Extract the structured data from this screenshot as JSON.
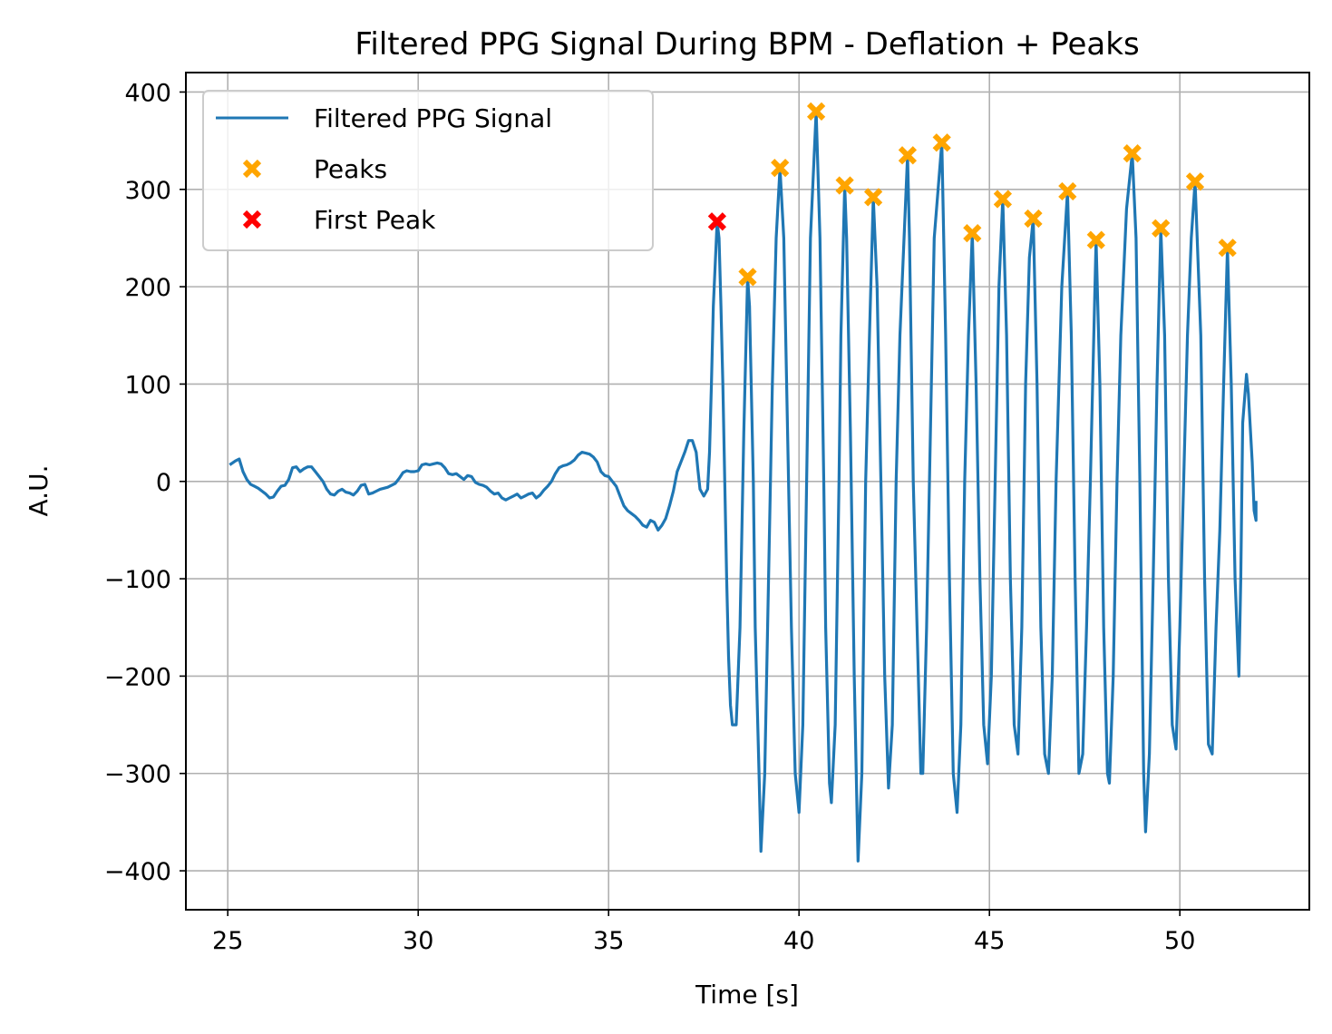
{
  "chart_data": {
    "type": "line",
    "title": "Filtered PPG Signal During BPM - Deflation + Peaks",
    "xlabel": "Time [s]",
    "ylabel": "A.U.",
    "xlim": [
      23.9,
      53.4
    ],
    "ylim": [
      -440,
      420
    ],
    "xticks": [
      25,
      30,
      35,
      40,
      45,
      50
    ],
    "xtick_labels": [
      "25",
      "30",
      "35",
      "40",
      "45",
      "50"
    ],
    "yticks": [
      400,
      300,
      200,
      100,
      0,
      -100,
      -200,
      -300,
      -400
    ],
    "ytick_labels": [
      "400",
      "300",
      "200",
      "100",
      "0",
      "−100",
      "−200",
      "−300",
      "−400"
    ],
    "grid": true,
    "legend_position": "top-left",
    "colors": {
      "signal": "#1f77b4",
      "peaks": "#ffa500",
      "first_peak": "#ff0000"
    },
    "series": [
      {
        "name": "Filtered PPG Signal",
        "style": "line",
        "points": [
          [
            25.05,
            17
          ],
          [
            25.2,
            21
          ],
          [
            25.3,
            23
          ],
          [
            25.4,
            10
          ],
          [
            25.5,
            2
          ],
          [
            25.6,
            -3
          ],
          [
            25.7,
            -5
          ],
          [
            25.8,
            -7
          ],
          [
            25.9,
            -10
          ],
          [
            26.0,
            -13
          ],
          [
            26.1,
            -17
          ],
          [
            26.2,
            -16
          ],
          [
            26.3,
            -10
          ],
          [
            26.4,
            -5
          ],
          [
            26.5,
            -4
          ],
          [
            26.6,
            2
          ],
          [
            26.7,
            14
          ],
          [
            26.8,
            15
          ],
          [
            26.9,
            10
          ],
          [
            27.0,
            13
          ],
          [
            27.1,
            15
          ],
          [
            27.2,
            15
          ],
          [
            27.3,
            10
          ],
          [
            27.4,
            5
          ],
          [
            27.5,
            0
          ],
          [
            27.6,
            -8
          ],
          [
            27.7,
            -13
          ],
          [
            27.8,
            -14
          ],
          [
            27.9,
            -10
          ],
          [
            28.0,
            -8
          ],
          [
            28.1,
            -11
          ],
          [
            28.2,
            -12
          ],
          [
            28.3,
            -14
          ],
          [
            28.4,
            -10
          ],
          [
            28.5,
            -4
          ],
          [
            28.6,
            -3
          ],
          [
            28.7,
            -13
          ],
          [
            28.8,
            -12
          ],
          [
            28.9,
            -10
          ],
          [
            29.0,
            -8
          ],
          [
            29.2,
            -6
          ],
          [
            29.4,
            -2
          ],
          [
            29.5,
            3
          ],
          [
            29.6,
            9
          ],
          [
            29.7,
            11
          ],
          [
            29.8,
            10
          ],
          [
            29.9,
            10
          ],
          [
            30.0,
            11
          ],
          [
            30.1,
            17
          ],
          [
            30.2,
            18
          ],
          [
            30.3,
            17
          ],
          [
            30.4,
            18
          ],
          [
            30.5,
            19
          ],
          [
            30.6,
            18
          ],
          [
            30.7,
            14
          ],
          [
            30.8,
            8
          ],
          [
            30.9,
            7
          ],
          [
            31.0,
            8
          ],
          [
            31.1,
            5
          ],
          [
            31.2,
            2
          ],
          [
            31.3,
            6
          ],
          [
            31.4,
            5
          ],
          [
            31.5,
            -1
          ],
          [
            31.6,
            -3
          ],
          [
            31.7,
            -4
          ],
          [
            31.8,
            -6
          ],
          [
            31.9,
            -10
          ],
          [
            32.0,
            -13
          ],
          [
            32.1,
            -12
          ],
          [
            32.2,
            -17
          ],
          [
            32.3,
            -19
          ],
          [
            32.4,
            -17
          ],
          [
            32.5,
            -15
          ],
          [
            32.6,
            -13
          ],
          [
            32.7,
            -17
          ],
          [
            32.8,
            -15
          ],
          [
            32.9,
            -13
          ],
          [
            33.0,
            -12
          ],
          [
            33.1,
            -17
          ],
          [
            33.2,
            -14
          ],
          [
            33.3,
            -9
          ],
          [
            33.4,
            -5
          ],
          [
            33.5,
            0
          ],
          [
            33.6,
            8
          ],
          [
            33.7,
            14
          ],
          [
            33.8,
            16
          ],
          [
            33.9,
            17
          ],
          [
            34.0,
            19
          ],
          [
            34.1,
            22
          ],
          [
            34.2,
            27
          ],
          [
            34.3,
            30
          ],
          [
            34.4,
            29
          ],
          [
            34.5,
            28
          ],
          [
            34.6,
            25
          ],
          [
            34.7,
            20
          ],
          [
            34.8,
            10
          ],
          [
            34.9,
            6
          ],
          [
            35.0,
            5
          ],
          [
            35.1,
            0
          ],
          [
            35.2,
            -5
          ],
          [
            35.3,
            -15
          ],
          [
            35.4,
            -25
          ],
          [
            35.5,
            -30
          ],
          [
            35.6,
            -33
          ],
          [
            35.7,
            -36
          ],
          [
            35.8,
            -40
          ],
          [
            35.9,
            -45
          ],
          [
            36.0,
            -47
          ],
          [
            36.1,
            -40
          ],
          [
            36.2,
            -42
          ],
          [
            36.3,
            -50
          ],
          [
            36.4,
            -45
          ],
          [
            36.5,
            -38
          ],
          [
            36.6,
            -25
          ],
          [
            36.7,
            -10
          ],
          [
            36.8,
            10
          ],
          [
            36.9,
            20
          ],
          [
            37.0,
            30
          ],
          [
            37.1,
            42
          ],
          [
            37.2,
            42
          ],
          [
            37.3,
            30
          ],
          [
            37.35,
            10
          ],
          [
            37.4,
            -8
          ],
          [
            37.5,
            -15
          ],
          [
            37.6,
            -8
          ],
          [
            37.65,
            30
          ],
          [
            37.7,
            100
          ],
          [
            37.75,
            180
          ],
          [
            37.85,
            267
          ],
          [
            37.9,
            250
          ],
          [
            37.95,
            180
          ],
          [
            38.0,
            100
          ],
          [
            38.05,
            0
          ],
          [
            38.1,
            -100
          ],
          [
            38.15,
            -180
          ],
          [
            38.2,
            -230
          ],
          [
            38.25,
            -250
          ],
          [
            38.35,
            -250
          ],
          [
            38.45,
            -150
          ],
          [
            38.55,
            50
          ],
          [
            38.65,
            210
          ],
          [
            38.7,
            180
          ],
          [
            38.8,
            0
          ],
          [
            38.85,
            -150
          ],
          [
            38.95,
            -300
          ],
          [
            39.0,
            -380
          ],
          [
            39.1,
            -300
          ],
          [
            39.2,
            -100
          ],
          [
            39.3,
            100
          ],
          [
            39.4,
            250
          ],
          [
            39.5,
            322
          ],
          [
            39.6,
            250
          ],
          [
            39.7,
            50
          ],
          [
            39.8,
            -150
          ],
          [
            39.9,
            -300
          ],
          [
            40.0,
            -340
          ],
          [
            40.1,
            -250
          ],
          [
            40.2,
            0
          ],
          [
            40.3,
            250
          ],
          [
            40.45,
            380
          ],
          [
            40.55,
            250
          ],
          [
            40.65,
            0
          ],
          [
            40.7,
            -150
          ],
          [
            40.8,
            -310
          ],
          [
            40.85,
            -330
          ],
          [
            40.95,
            -250
          ],
          [
            41.05,
            0
          ],
          [
            41.1,
            150
          ],
          [
            41.2,
            304
          ],
          [
            41.25,
            250
          ],
          [
            41.35,
            50
          ],
          [
            41.45,
            -200
          ],
          [
            41.55,
            -390
          ],
          [
            41.65,
            -300
          ],
          [
            41.75,
            0
          ],
          [
            41.85,
            150
          ],
          [
            41.95,
            292
          ],
          [
            42.05,
            200
          ],
          [
            42.15,
            0
          ],
          [
            42.25,
            -200
          ],
          [
            42.35,
            -315
          ],
          [
            42.45,
            -250
          ],
          [
            42.55,
            0
          ],
          [
            42.65,
            150
          ],
          [
            42.85,
            335
          ],
          [
            42.9,
            250
          ],
          [
            43.0,
            0
          ],
          [
            43.1,
            -150
          ],
          [
            43.2,
            -300
          ],
          [
            43.25,
            -300
          ],
          [
            43.35,
            -150
          ],
          [
            43.45,
            50
          ],
          [
            43.55,
            250
          ],
          [
            43.75,
            348
          ],
          [
            43.85,
            150
          ],
          [
            43.95,
            -100
          ],
          [
            44.05,
            -300
          ],
          [
            44.15,
            -340
          ],
          [
            44.25,
            -250
          ],
          [
            44.35,
            0
          ],
          [
            44.45,
            150
          ],
          [
            44.55,
            255
          ],
          [
            44.65,
            100
          ],
          [
            44.75,
            -100
          ],
          [
            44.85,
            -250
          ],
          [
            44.95,
            -290
          ],
          [
            45.05,
            -200
          ],
          [
            45.15,
            0
          ],
          [
            45.25,
            200
          ],
          [
            45.35,
            290
          ],
          [
            45.45,
            150
          ],
          [
            45.55,
            -100
          ],
          [
            45.65,
            -250
          ],
          [
            45.75,
            -280
          ],
          [
            45.85,
            -150
          ],
          [
            45.95,
            100
          ],
          [
            46.05,
            230
          ],
          [
            46.15,
            270
          ],
          [
            46.25,
            100
          ],
          [
            46.35,
            -150
          ],
          [
            46.45,
            -280
          ],
          [
            46.55,
            -300
          ],
          [
            46.65,
            -200
          ],
          [
            46.75,
            0
          ],
          [
            46.9,
            200
          ],
          [
            47.05,
            298
          ],
          [
            47.15,
            150
          ],
          [
            47.25,
            -100
          ],
          [
            47.35,
            -300
          ],
          [
            47.45,
            -280
          ],
          [
            47.55,
            -150
          ],
          [
            47.65,
            0
          ],
          [
            47.8,
            248
          ],
          [
            47.9,
            100
          ],
          [
            48.0,
            -150
          ],
          [
            48.1,
            -300
          ],
          [
            48.15,
            -310
          ],
          [
            48.25,
            -200
          ],
          [
            48.35,
            0
          ],
          [
            48.45,
            150
          ],
          [
            48.6,
            280
          ],
          [
            48.75,
            337
          ],
          [
            48.85,
            250
          ],
          [
            48.95,
            0
          ],
          [
            49.05,
            -300
          ],
          [
            49.1,
            -360
          ],
          [
            49.2,
            -280
          ],
          [
            49.3,
            -100
          ],
          [
            49.4,
            100
          ],
          [
            49.5,
            260
          ],
          [
            49.6,
            150
          ],
          [
            49.7,
            -100
          ],
          [
            49.8,
            -250
          ],
          [
            49.9,
            -275
          ],
          [
            50.0,
            -150
          ],
          [
            50.1,
            0
          ],
          [
            50.2,
            150
          ],
          [
            50.3,
            250
          ],
          [
            50.4,
            308
          ],
          [
            50.55,
            150
          ],
          [
            50.65,
            -100
          ],
          [
            50.75,
            -270
          ],
          [
            50.85,
            -280
          ],
          [
            50.95,
            -150
          ],
          [
            51.05,
            -50
          ],
          [
            51.15,
            100
          ],
          [
            51.25,
            240
          ],
          [
            51.35,
            100
          ],
          [
            51.45,
            -100
          ],
          [
            51.55,
            -200
          ],
          [
            51.6,
            -100
          ],
          [
            51.65,
            60
          ],
          [
            51.75,
            110
          ],
          [
            51.8,
            90
          ],
          [
            51.9,
            20
          ],
          [
            51.95,
            -30
          ],
          [
            52.0,
            -40
          ],
          [
            52.0,
            -20
          ]
        ]
      },
      {
        "name": "Peaks",
        "style": "marker",
        "x": [
          38.65,
          39.5,
          40.45,
          41.2,
          41.95,
          42.85,
          43.75,
          44.55,
          45.35,
          46.15,
          47.05,
          47.8,
          48.75,
          49.5,
          50.4,
          51.25
        ],
        "y": [
          210,
          322,
          380,
          304,
          292,
          335,
          348,
          255,
          290,
          270,
          298,
          248,
          337,
          260,
          308,
          240
        ]
      },
      {
        "name": "First Peak",
        "style": "marker",
        "x": [
          37.85
        ],
        "y": [
          267
        ]
      }
    ]
  }
}
